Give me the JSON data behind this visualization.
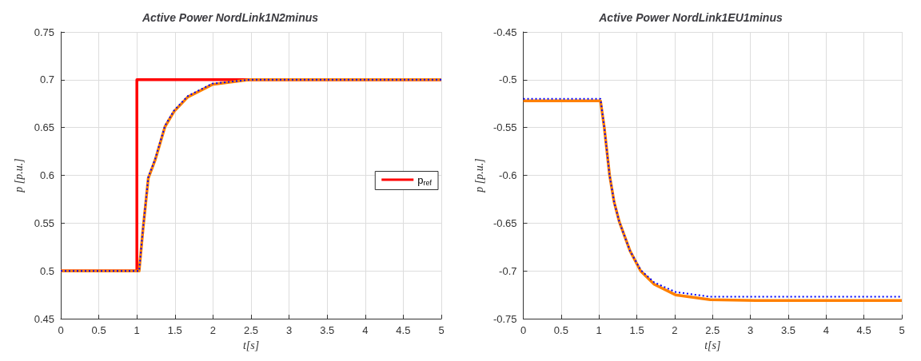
{
  "chart_data": [
    {
      "type": "line",
      "title": "Active Power NordLink1N2minus",
      "xlabel": "t[s]",
      "ylabel": "p [p.u.]",
      "xlim": [
        0,
        5
      ],
      "xticks": [
        0,
        0.5,
        1,
        1.5,
        2,
        2.5,
        3,
        3.5,
        4,
        4.5,
        5
      ],
      "ylim": [
        0.45,
        0.75
      ],
      "yticks": [
        0.45,
        0.5,
        0.55,
        0.6,
        0.65,
        0.7,
        0.75
      ],
      "grid": true,
      "legend": "right",
      "series": [
        {
          "name": "p$_{ref}$",
          "color": "#ff0000",
          "line_style": "solid",
          "x": [
            0,
            1,
            1,
            5
          ],
          "values": [
            0.5,
            0.5,
            0.7,
            0.7
          ]
        },
        {
          "color": "#ff8000",
          "line_style": "solid",
          "x": [
            0,
            1,
            1.03,
            1.08,
            1.15,
            1.24,
            1.37,
            1.49,
            1.67,
            1.99,
            2.48,
            5
          ],
          "values": [
            0.5,
            0.5,
            0.5,
            0.543,
            0.597,
            0.616,
            0.651,
            0.667,
            0.682,
            0.695,
            0.7,
            0.7
          ]
        },
        {
          "color": "#0000ff",
          "line_style": "dotted",
          "x": [
            0,
            1,
            1.03,
            1.08,
            1.15,
            1.24,
            1.37,
            1.49,
            1.67,
            1.99,
            2.48,
            5
          ],
          "values": [
            0.5,
            0.5,
            0.5,
            0.544,
            0.598,
            0.617,
            0.652,
            0.668,
            0.683,
            0.696,
            0.7,
            0.7
          ]
        }
      ]
    },
    {
      "type": "line",
      "title": "Active Power NordLink1EU1minus",
      "xlabel": "t[s]",
      "ylabel": "p [p.u.]",
      "xlim": [
        0,
        5
      ],
      "xticks": [
        0,
        0.5,
        1,
        1.5,
        2,
        2.5,
        3,
        3.5,
        4,
        4.5,
        5
      ],
      "ylim": [
        -0.75,
        -0.45
      ],
      "yticks": [
        -0.75,
        -0.7,
        -0.65,
        -0.6,
        -0.55,
        -0.5,
        -0.45
      ],
      "grid": true,
      "legend": false,
      "series": [
        {
          "color": "#ff8000",
          "line_style": "solid",
          "x": [
            0,
            1.02,
            1.07,
            1.14,
            1.2,
            1.27,
            1.41,
            1.55,
            1.73,
            2.01,
            2.47,
            3.07,
            5
          ],
          "values": [
            -0.522,
            -0.522,
            -0.55,
            -0.6,
            -0.628,
            -0.649,
            -0.679,
            -0.7,
            -0.714,
            -0.725,
            -0.73,
            -0.731,
            -0.731
          ]
        },
        {
          "color": "#0000ff",
          "line_style": "dotted",
          "x": [
            0,
            1.02,
            1.07,
            1.14,
            1.2,
            1.27,
            1.41,
            1.55,
            1.73,
            2.01,
            2.47,
            3.07,
            5
          ],
          "values": [
            -0.52,
            -0.52,
            -0.55,
            -0.6,
            -0.628,
            -0.649,
            -0.679,
            -0.699,
            -0.712,
            -0.722,
            -0.727,
            -0.727,
            -0.727
          ]
        }
      ]
    }
  ]
}
